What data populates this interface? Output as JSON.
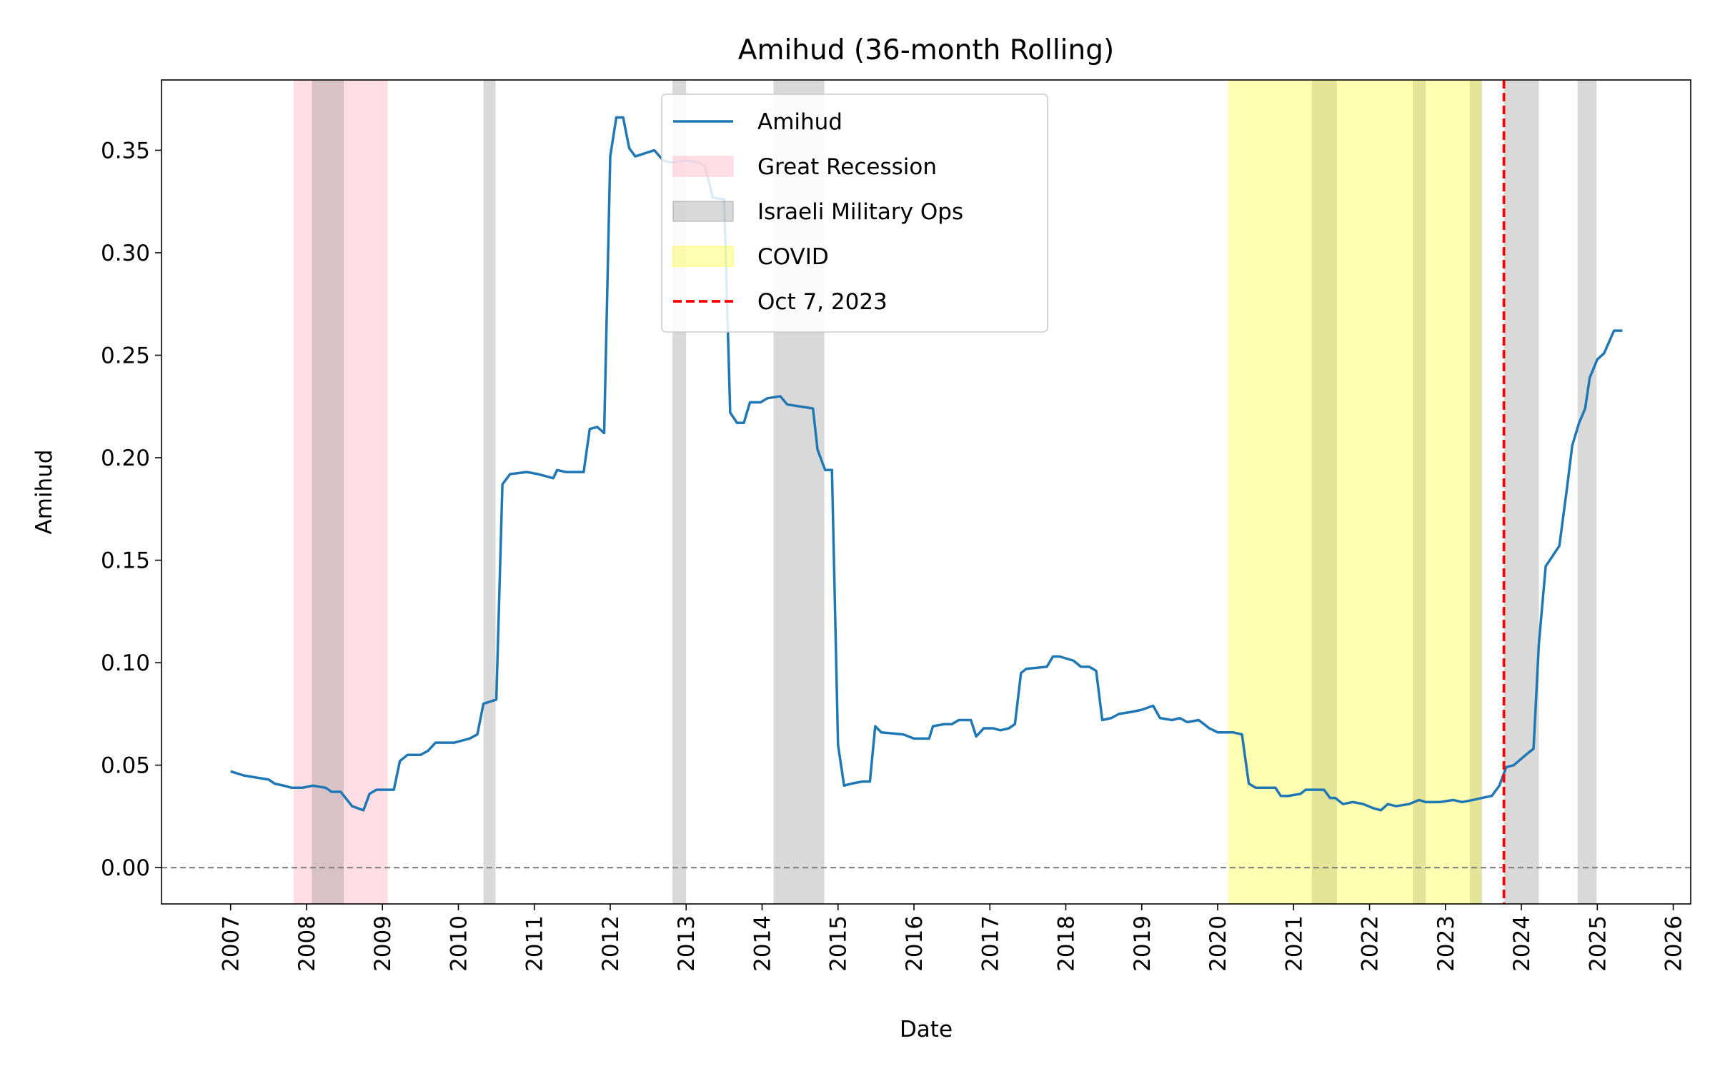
{
  "chart_data": {
    "type": "line",
    "title": "Amihud (36-month Rolling)",
    "x_label": "Date",
    "y_label": "Amihud",
    "x": [
      2007.0,
      2007.17,
      2007.33,
      2007.5,
      2007.58,
      2007.7,
      2007.8,
      2007.95,
      2008.08,
      2008.25,
      2008.33,
      2008.45,
      2008.6,
      2008.75,
      2008.83,
      2008.92,
      2009.15,
      2009.23,
      2009.33,
      2009.5,
      2009.6,
      2009.7,
      2009.8,
      2009.95,
      2010.15,
      2010.25,
      2010.33,
      2010.5,
      2010.58,
      2010.68,
      2010.9,
      2011.05,
      2011.25,
      2011.3,
      2011.42,
      2011.65,
      2011.73,
      2011.83,
      2011.92,
      2012.0,
      2012.08,
      2012.17,
      2012.25,
      2012.33,
      2012.58,
      2012.7,
      2012.8,
      2013.0,
      2013.17,
      2013.25,
      2013.35,
      2013.5,
      2013.58,
      2013.67,
      2013.76,
      2013.84,
      2013.98,
      2014.07,
      2014.24,
      2014.33,
      2014.67,
      2014.73,
      2014.83,
      2014.92,
      2015.0,
      2015.08,
      2015.18,
      2015.32,
      2015.42,
      2015.49,
      2015.57,
      2015.86,
      2016.0,
      2016.2,
      2016.25,
      2016.4,
      2016.5,
      2016.59,
      2016.75,
      2016.82,
      2016.92,
      2017.04,
      2017.14,
      2017.25,
      2017.33,
      2017.41,
      2017.48,
      2017.75,
      2017.83,
      2017.92,
      2018.1,
      2018.2,
      2018.31,
      2018.4,
      2018.48,
      2018.6,
      2018.7,
      2018.87,
      2019.0,
      2019.15,
      2019.24,
      2019.4,
      2019.5,
      2019.6,
      2019.75,
      2019.89,
      2020.0,
      2020.2,
      2020.32,
      2020.41,
      2020.5,
      2020.76,
      2020.83,
      2020.93,
      2021.09,
      2021.16,
      2021.4,
      2021.48,
      2021.55,
      2021.65,
      2021.78,
      2021.92,
      2022.05,
      2022.15,
      2022.24,
      2022.35,
      2022.52,
      2022.65,
      2022.74,
      2022.93,
      2023.1,
      2023.22,
      2023.36,
      2023.48,
      2023.61,
      2023.71,
      2023.8,
      2023.9,
      2024.09,
      2024.16,
      2024.23,
      2024.32,
      2024.5,
      2024.6,
      2024.67,
      2024.76,
      2024.84,
      2024.9,
      2025.0,
      2025.09,
      2025.22,
      2025.33
    ],
    "series": [
      {
        "name": "Amihud",
        "color": "#1f77b4",
        "values": [
          0.047,
          0.045,
          0.044,
          0.043,
          0.041,
          0.04,
          0.039,
          0.039,
          0.04,
          0.039,
          0.037,
          0.037,
          0.03,
          0.028,
          0.036,
          0.038,
          0.038,
          0.052,
          0.055,
          0.055,
          0.057,
          0.061,
          0.061,
          0.061,
          0.063,
          0.065,
          0.08,
          0.082,
          0.187,
          0.192,
          0.193,
          0.192,
          0.19,
          0.194,
          0.193,
          0.193,
          0.214,
          0.215,
          0.212,
          0.347,
          0.366,
          0.366,
          0.351,
          0.347,
          0.35,
          0.345,
          0.344,
          0.345,
          0.344,
          0.342,
          0.327,
          0.326,
          0.222,
          0.217,
          0.217,
          0.227,
          0.227,
          0.229,
          0.23,
          0.226,
          0.224,
          0.204,
          0.194,
          0.194,
          0.06,
          0.04,
          0.041,
          0.042,
          0.042,
          0.069,
          0.066,
          0.065,
          0.063,
          0.063,
          0.069,
          0.07,
          0.07,
          0.072,
          0.072,
          0.064,
          0.068,
          0.068,
          0.067,
          0.068,
          0.07,
          0.095,
          0.097,
          0.098,
          0.103,
          0.103,
          0.101,
          0.098,
          0.098,
          0.096,
          0.072,
          0.073,
          0.075,
          0.076,
          0.077,
          0.079,
          0.073,
          0.072,
          0.073,
          0.071,
          0.072,
          0.068,
          0.066,
          0.066,
          0.065,
          0.041,
          0.039,
          0.039,
          0.035,
          0.035,
          0.036,
          0.038,
          0.038,
          0.034,
          0.034,
          0.031,
          0.032,
          0.031,
          0.029,
          0.028,
          0.031,
          0.03,
          0.031,
          0.033,
          0.032,
          0.032,
          0.033,
          0.032,
          0.033,
          0.034,
          0.035,
          0.04,
          0.049,
          0.05,
          0.056,
          0.058,
          0.109,
          0.147,
          0.157,
          0.185,
          0.206,
          0.217,
          0.224,
          0.239,
          0.248,
          0.251,
          0.262,
          0.262
        ]
      }
    ],
    "bands": [
      {
        "name": "Great Recession",
        "color": "#ffc0cb",
        "opacity": 0.5,
        "ranges": [
          [
            2007.83,
            2009.07
          ]
        ]
      },
      {
        "name": "Israeli Military Ops",
        "color": "#808080",
        "opacity": 0.3,
        "ranges": [
          [
            2008.07,
            2008.49
          ],
          [
            2010.33,
            2010.49
          ],
          [
            2012.82,
            2013.0
          ],
          [
            2014.15,
            2014.82
          ],
          [
            2021.24,
            2021.57
          ],
          [
            2022.57,
            2022.74
          ],
          [
            2023.32,
            2023.48
          ],
          [
            2023.77,
            2024.23
          ],
          [
            2024.74,
            2024.99
          ]
        ]
      },
      {
        "name": "COVID",
        "color": "#ffff00",
        "opacity": 0.3,
        "ranges": [
          [
            2020.14,
            2023.47
          ]
        ]
      }
    ],
    "vline": {
      "name": "Oct 7, 2023",
      "x": 2023.77,
      "color": "#ff0000"
    },
    "hline": {
      "y": 0,
      "color": "#808080"
    },
    "xlim": [
      2006.09,
      2026.23
    ],
    "ylim": [
      -0.0177,
      0.3843
    ],
    "xticks": [
      2007,
      2008,
      2009,
      2010,
      2011,
      2012,
      2013,
      2014,
      2015,
      2016,
      2017,
      2018,
      2019,
      2020,
      2021,
      2022,
      2023,
      2024,
      2025,
      2026
    ],
    "yticks": [
      {
        "value": 0,
        "label": "0.00"
      },
      {
        "value": 0.05,
        "label": "0.05"
      },
      {
        "value": 0.1,
        "label": "0.10"
      },
      {
        "value": 0.15,
        "label": "0.15"
      },
      {
        "value": 0.2,
        "label": "0.20"
      },
      {
        "value": 0.25,
        "label": "0.25"
      },
      {
        "value": 0.3,
        "label": "0.30"
      },
      {
        "value": 0.35,
        "label": "0.35"
      }
    ],
    "grid": false,
    "legend": "upper center"
  }
}
